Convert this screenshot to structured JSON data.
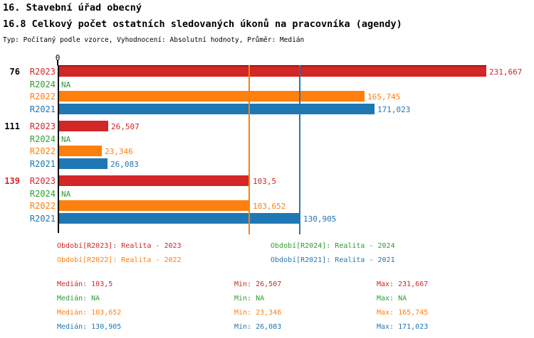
{
  "header": {
    "title": "16. Stavební úřad obecný",
    "subtitle": "16.8 Celkový počet ostatních sledovaných úkonů na pracovníka (agendy)",
    "meta": "Typ: Počítaný podle vzorce, Vyhodnocení: Absolutní hodnoty, Průměr: Medián"
  },
  "colors": {
    "R2023": "#d22627",
    "R2024": "#2e9e2e",
    "R2022": "#ff7f0e",
    "R2021": "#1f77b4",
    "axis": "#000000",
    "group_label_default": "#000000",
    "group_label_highlight": "#d22627"
  },
  "chart_data": {
    "type": "bar",
    "orientation": "horizontal",
    "title": "16.8 Celkový počet ostatních sledovaných úkonů na pracovníka (agendy)",
    "value_axis": {
      "position": "top",
      "zero_label": "0",
      "min": 0,
      "max": 231.667,
      "gridlines": false
    },
    "series_order": [
      "R2023",
      "R2024",
      "R2022",
      "R2021"
    ],
    "groups": [
      {
        "label": "76",
        "label_color": "#000000",
        "bars": [
          {
            "series": "R2023",
            "value": 231.667,
            "display": "231,667"
          },
          {
            "series": "R2024",
            "value": null,
            "display": "NA"
          },
          {
            "series": "R2022",
            "value": 165.745,
            "display": "165,745"
          },
          {
            "series": "R2021",
            "value": 171.023,
            "display": "171,023"
          }
        ]
      },
      {
        "label": "111",
        "label_color": "#000000",
        "bars": [
          {
            "series": "R2023",
            "value": 26.507,
            "display": "26,507"
          },
          {
            "series": "R2024",
            "value": null,
            "display": "NA"
          },
          {
            "series": "R2022",
            "value": 23.346,
            "display": "23,346"
          },
          {
            "series": "R2021",
            "value": 26.083,
            "display": "26,083"
          }
        ]
      },
      {
        "label": "139",
        "label_color": "#d22627",
        "bars": [
          {
            "series": "R2023",
            "value": 103.5,
            "display": "103,5"
          },
          {
            "series": "R2024",
            "value": null,
            "display": "NA"
          },
          {
            "series": "R2022",
            "value": 103.652,
            "display": "103,652"
          },
          {
            "series": "R2021",
            "value": 130.905,
            "display": "130,905"
          }
        ]
      }
    ],
    "median_lines": [
      {
        "series": "R2022",
        "value": 103.652
      },
      {
        "series": "R2021",
        "value": 130.905
      }
    ],
    "legend": [
      {
        "series": "R2023",
        "label": "Období[R2023]: Realita - 2023"
      },
      {
        "series": "R2024",
        "label": "Období[R2024]: Realita - 2024"
      },
      {
        "series": "R2022",
        "label": "Období[R2022]: Realita - 2022"
      },
      {
        "series": "R2021",
        "label": "Období[R2021]: Realita - 2021"
      }
    ],
    "stats": [
      {
        "series": "R2023",
        "median": "Medián: 103,5",
        "min": "Min: 26,507",
        "max": "Max: 231,667"
      },
      {
        "series": "R2024",
        "median": "Medián: NA",
        "min": "Min: NA",
        "max": "Max: NA"
      },
      {
        "series": "R2022",
        "median": "Medián: 103,652",
        "min": "Min: 23,346",
        "max": "Max: 165,745"
      },
      {
        "series": "R2021",
        "median": "Medián: 130,905",
        "min": "Min: 26,083",
        "max": "Max: 171,023"
      }
    ]
  }
}
